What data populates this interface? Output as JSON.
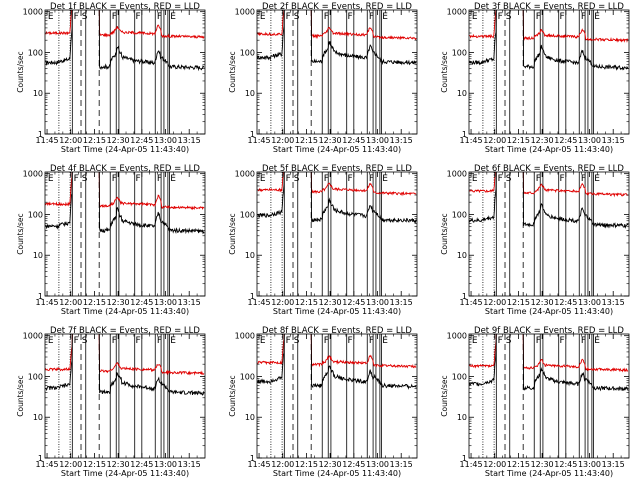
{
  "chart_data": {
    "type": "line",
    "shared": {
      "xlabel": "Start Time (24-Apr-05 11:43:40)",
      "ylabel": "Counts/sec",
      "x_tick_labels": [
        "11:45",
        "12:00",
        "12:15",
        "12:30",
        "12:45",
        "13:00",
        "13:15"
      ],
      "x_tick_minutes": [
        105,
        120,
        135,
        150,
        165,
        180,
        195
      ],
      "y_tick_labels": [
        "1",
        "10",
        "100",
        "1000"
      ],
      "y_tick_values": [
        1,
        10,
        100,
        1000
      ],
      "xlim_minutes": [
        103.7,
        205
      ],
      "ylim": [
        1,
        1100
      ],
      "y_scale": "log",
      "event_markers_minutes": {
        "dotted": [
          112.5,
          119.6
        ],
        "dashed": [
          126.5,
          138.0
        ],
        "solid": [
          121.0,
          129.5,
          145.0,
          148.8,
          150.5,
          160.5,
          165.0,
          173.5,
          177.2,
          179.0,
          181.5,
          182.5
        ]
      },
      "annotations": [
        {
          "text": "E",
          "minute": 105.5
        },
        {
          "text": "F",
          "minute": 121.8
        },
        {
          "text": "S",
          "minute": 127.0
        },
        {
          "text": "F",
          "minute": 146.0
        },
        {
          "text": "F",
          "minute": 161.0
        },
        {
          "text": "F",
          "minute": 174.5
        },
        {
          "text": "E",
          "minute": 183.0
        }
      ],
      "series_colors": {
        "events": "#000000",
        "lld": "#e00000"
      }
    },
    "panels": [
      {
        "title": "Det 1f BLACK = Events, RED = LLD",
        "events_base": 60,
        "lld_base": 300,
        "peak": 1.0
      },
      {
        "title": "Det 2f BLACK = Events, RED = LLD",
        "events_base": 80,
        "lld_base": 280,
        "peak": 0.9
      },
      {
        "title": "Det 3f BLACK = Events, RED = LLD",
        "events_base": 60,
        "lld_base": 250,
        "peak": 0.9
      },
      {
        "title": "Det 4f BLACK = Events, RED = LLD",
        "events_base": 55,
        "lld_base": 180,
        "peak": 1.1
      },
      {
        "title": "Det 5f BLACK = Events, RED = LLD",
        "events_base": 100,
        "lld_base": 400,
        "peak": 0.8
      },
      {
        "title": "Det 6f BLACK = Events, RED = LLD",
        "events_base": 75,
        "lld_base": 380,
        "peak": 0.9
      },
      {
        "title": "Det 7f BLACK = Events, RED = LLD",
        "events_base": 55,
        "lld_base": 150,
        "peak": 0.7
      },
      {
        "title": "Det 8f BLACK = Events, RED = LLD",
        "events_base": 80,
        "lld_base": 220,
        "peak": 0.8
      },
      {
        "title": "Det 9f BLACK = Events, RED = LLD",
        "events_base": 70,
        "lld_base": 180,
        "peak": 0.8
      }
    ]
  }
}
